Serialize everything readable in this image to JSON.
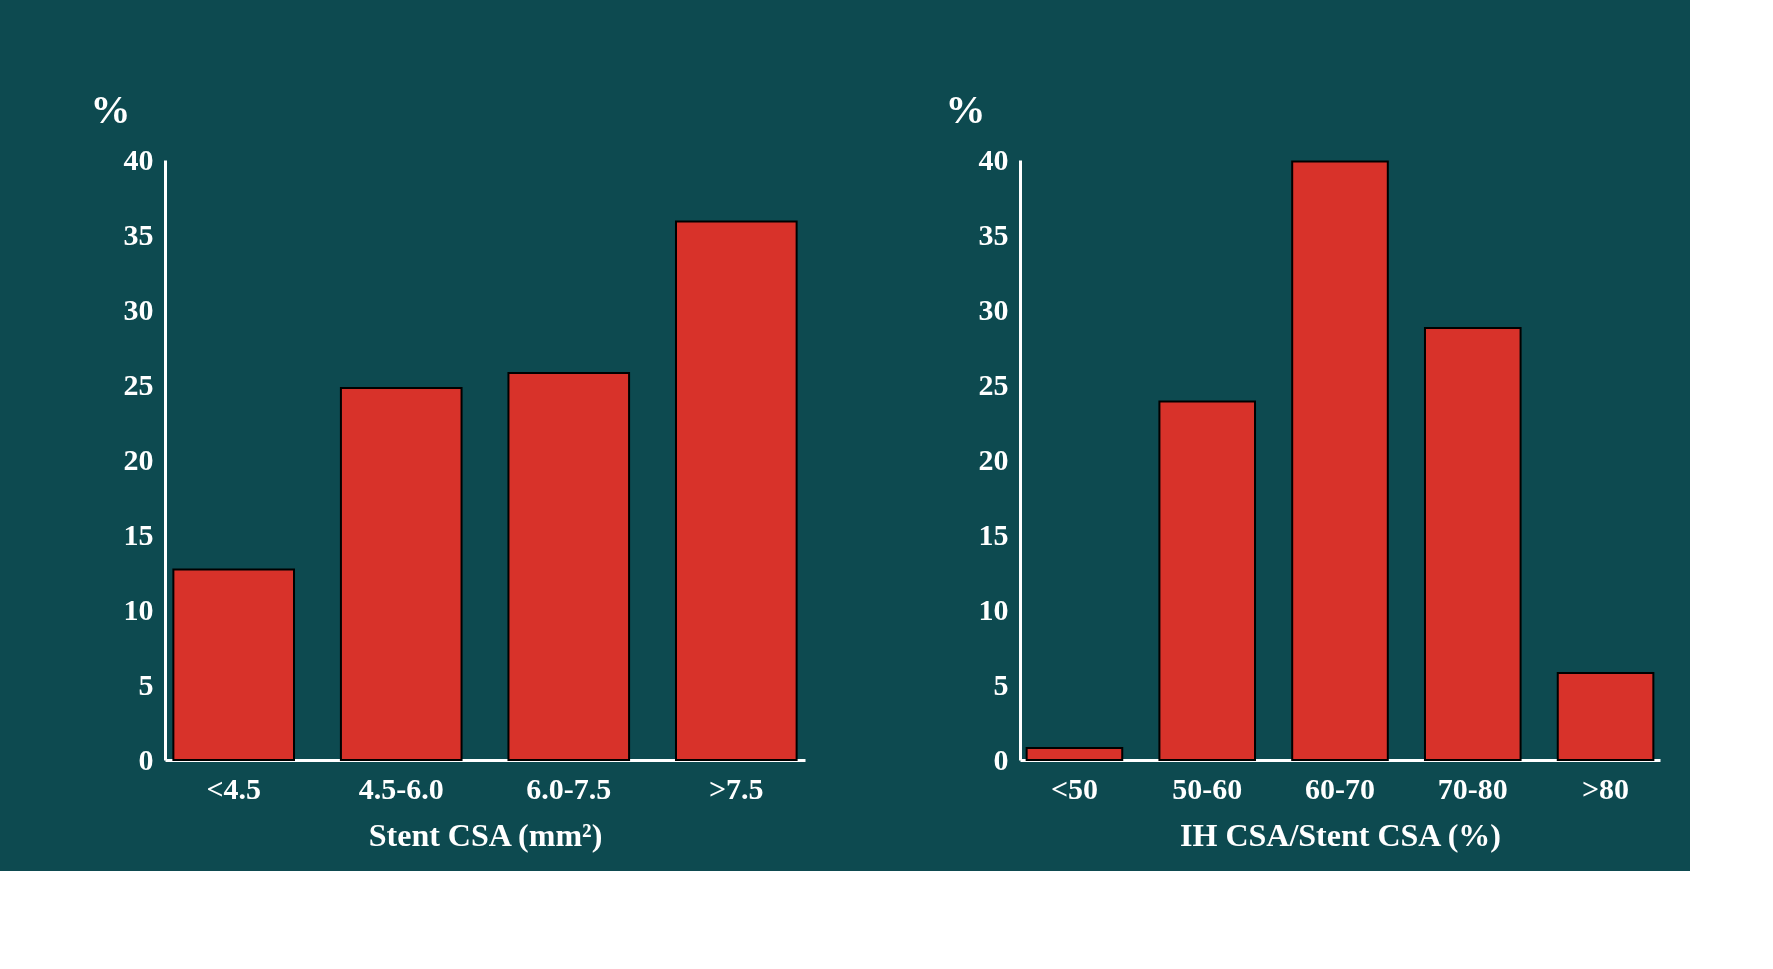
{
  "chart_data": [
    {
      "type": "bar",
      "ylabel": "%",
      "xlabel": "Stent CSA (mm²)",
      "categories": [
        "<4.5",
        "4.5-6.0",
        "6.0-7.5",
        ">7.5"
      ],
      "values": [
        12.7,
        24.8,
        25.8,
        35.9
      ],
      "color": "#d8322a",
      "ylim": [
        0,
        40
      ],
      "yticks": [
        0,
        5,
        10,
        15,
        20,
        25,
        30,
        35,
        40
      ],
      "grid": false
    },
    {
      "type": "bar",
      "ylabel": "%",
      "xlabel": "IH CSA/Stent CSA (%)",
      "categories": [
        "<50",
        "50-60",
        "60-70",
        "70-80",
        ">80"
      ],
      "values": [
        0.8,
        23.9,
        39.9,
        28.8,
        5.8
      ],
      "color": "#d8322a",
      "ylim": [
        0,
        40
      ],
      "yticks": [
        0,
        5,
        10,
        15,
        20,
        25,
        30,
        35,
        40
      ],
      "grid": false
    }
  ]
}
